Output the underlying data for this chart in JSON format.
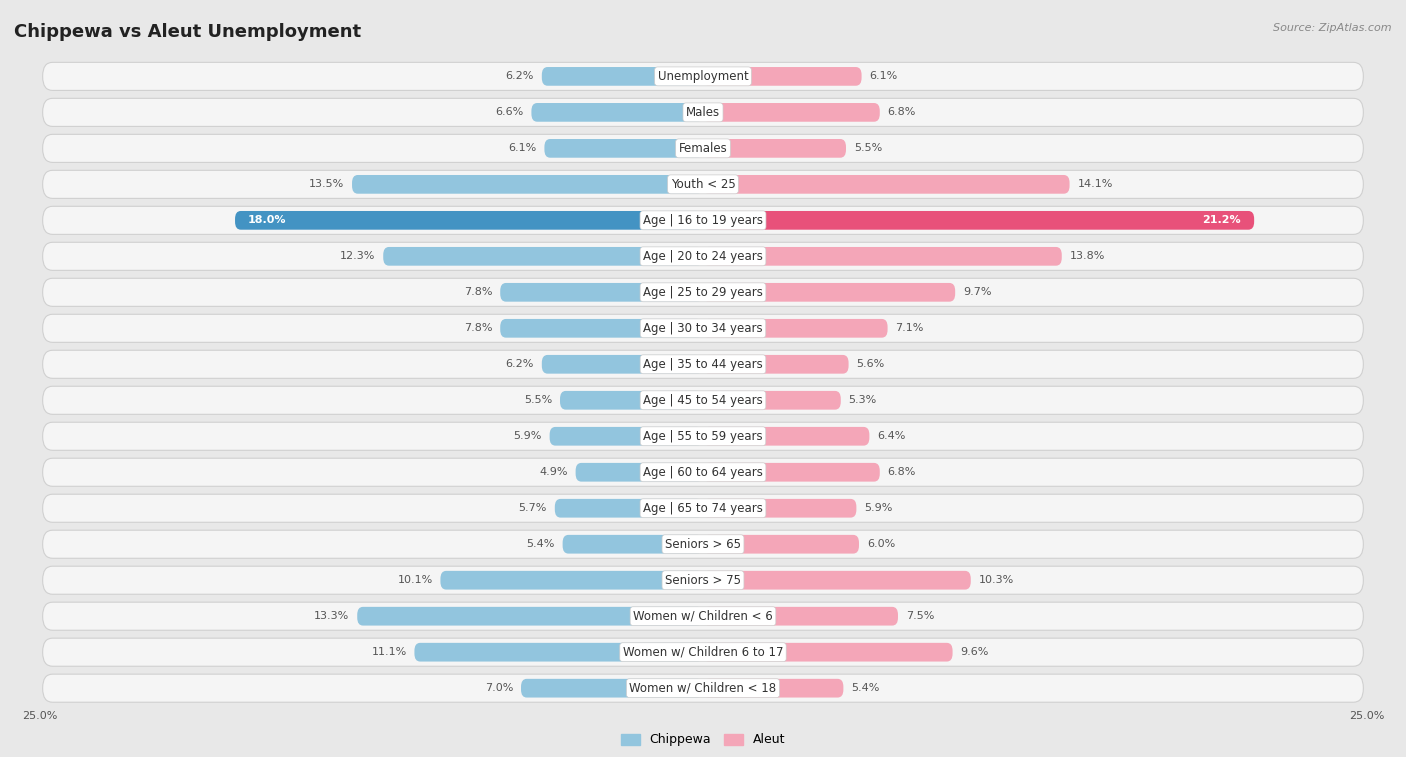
{
  "title": "Chippewa vs Aleut Unemployment",
  "source": "Source: ZipAtlas.com",
  "categories": [
    "Unemployment",
    "Males",
    "Females",
    "Youth < 25",
    "Age | 16 to 19 years",
    "Age | 20 to 24 years",
    "Age | 25 to 29 years",
    "Age | 30 to 34 years",
    "Age | 35 to 44 years",
    "Age | 45 to 54 years",
    "Age | 55 to 59 years",
    "Age | 60 to 64 years",
    "Age | 65 to 74 years",
    "Seniors > 65",
    "Seniors > 75",
    "Women w/ Children < 6",
    "Women w/ Children 6 to 17",
    "Women w/ Children < 18"
  ],
  "chippewa": [
    6.2,
    6.6,
    6.1,
    13.5,
    18.0,
    12.3,
    7.8,
    7.8,
    6.2,
    5.5,
    5.9,
    4.9,
    5.7,
    5.4,
    10.1,
    13.3,
    11.1,
    7.0
  ],
  "aleut": [
    6.1,
    6.8,
    5.5,
    14.1,
    21.2,
    13.8,
    9.7,
    7.1,
    5.6,
    5.3,
    6.4,
    6.8,
    5.9,
    6.0,
    10.3,
    7.5,
    9.6,
    5.4
  ],
  "chippewa_color": "#92c5de",
  "aleut_color": "#f4a6b8",
  "chippewa_highlight_color": "#4393c3",
  "aleut_highlight_color": "#e8517a",
  "highlight_row": 4,
  "background_color": "#e8e8e8",
  "row_bg_color": "#f5f5f5",
  "row_border_color": "#d0d0d0",
  "max_val": 25.0,
  "label_fontsize": 8.5,
  "value_fontsize": 8.0,
  "title_fontsize": 13,
  "source_fontsize": 8
}
